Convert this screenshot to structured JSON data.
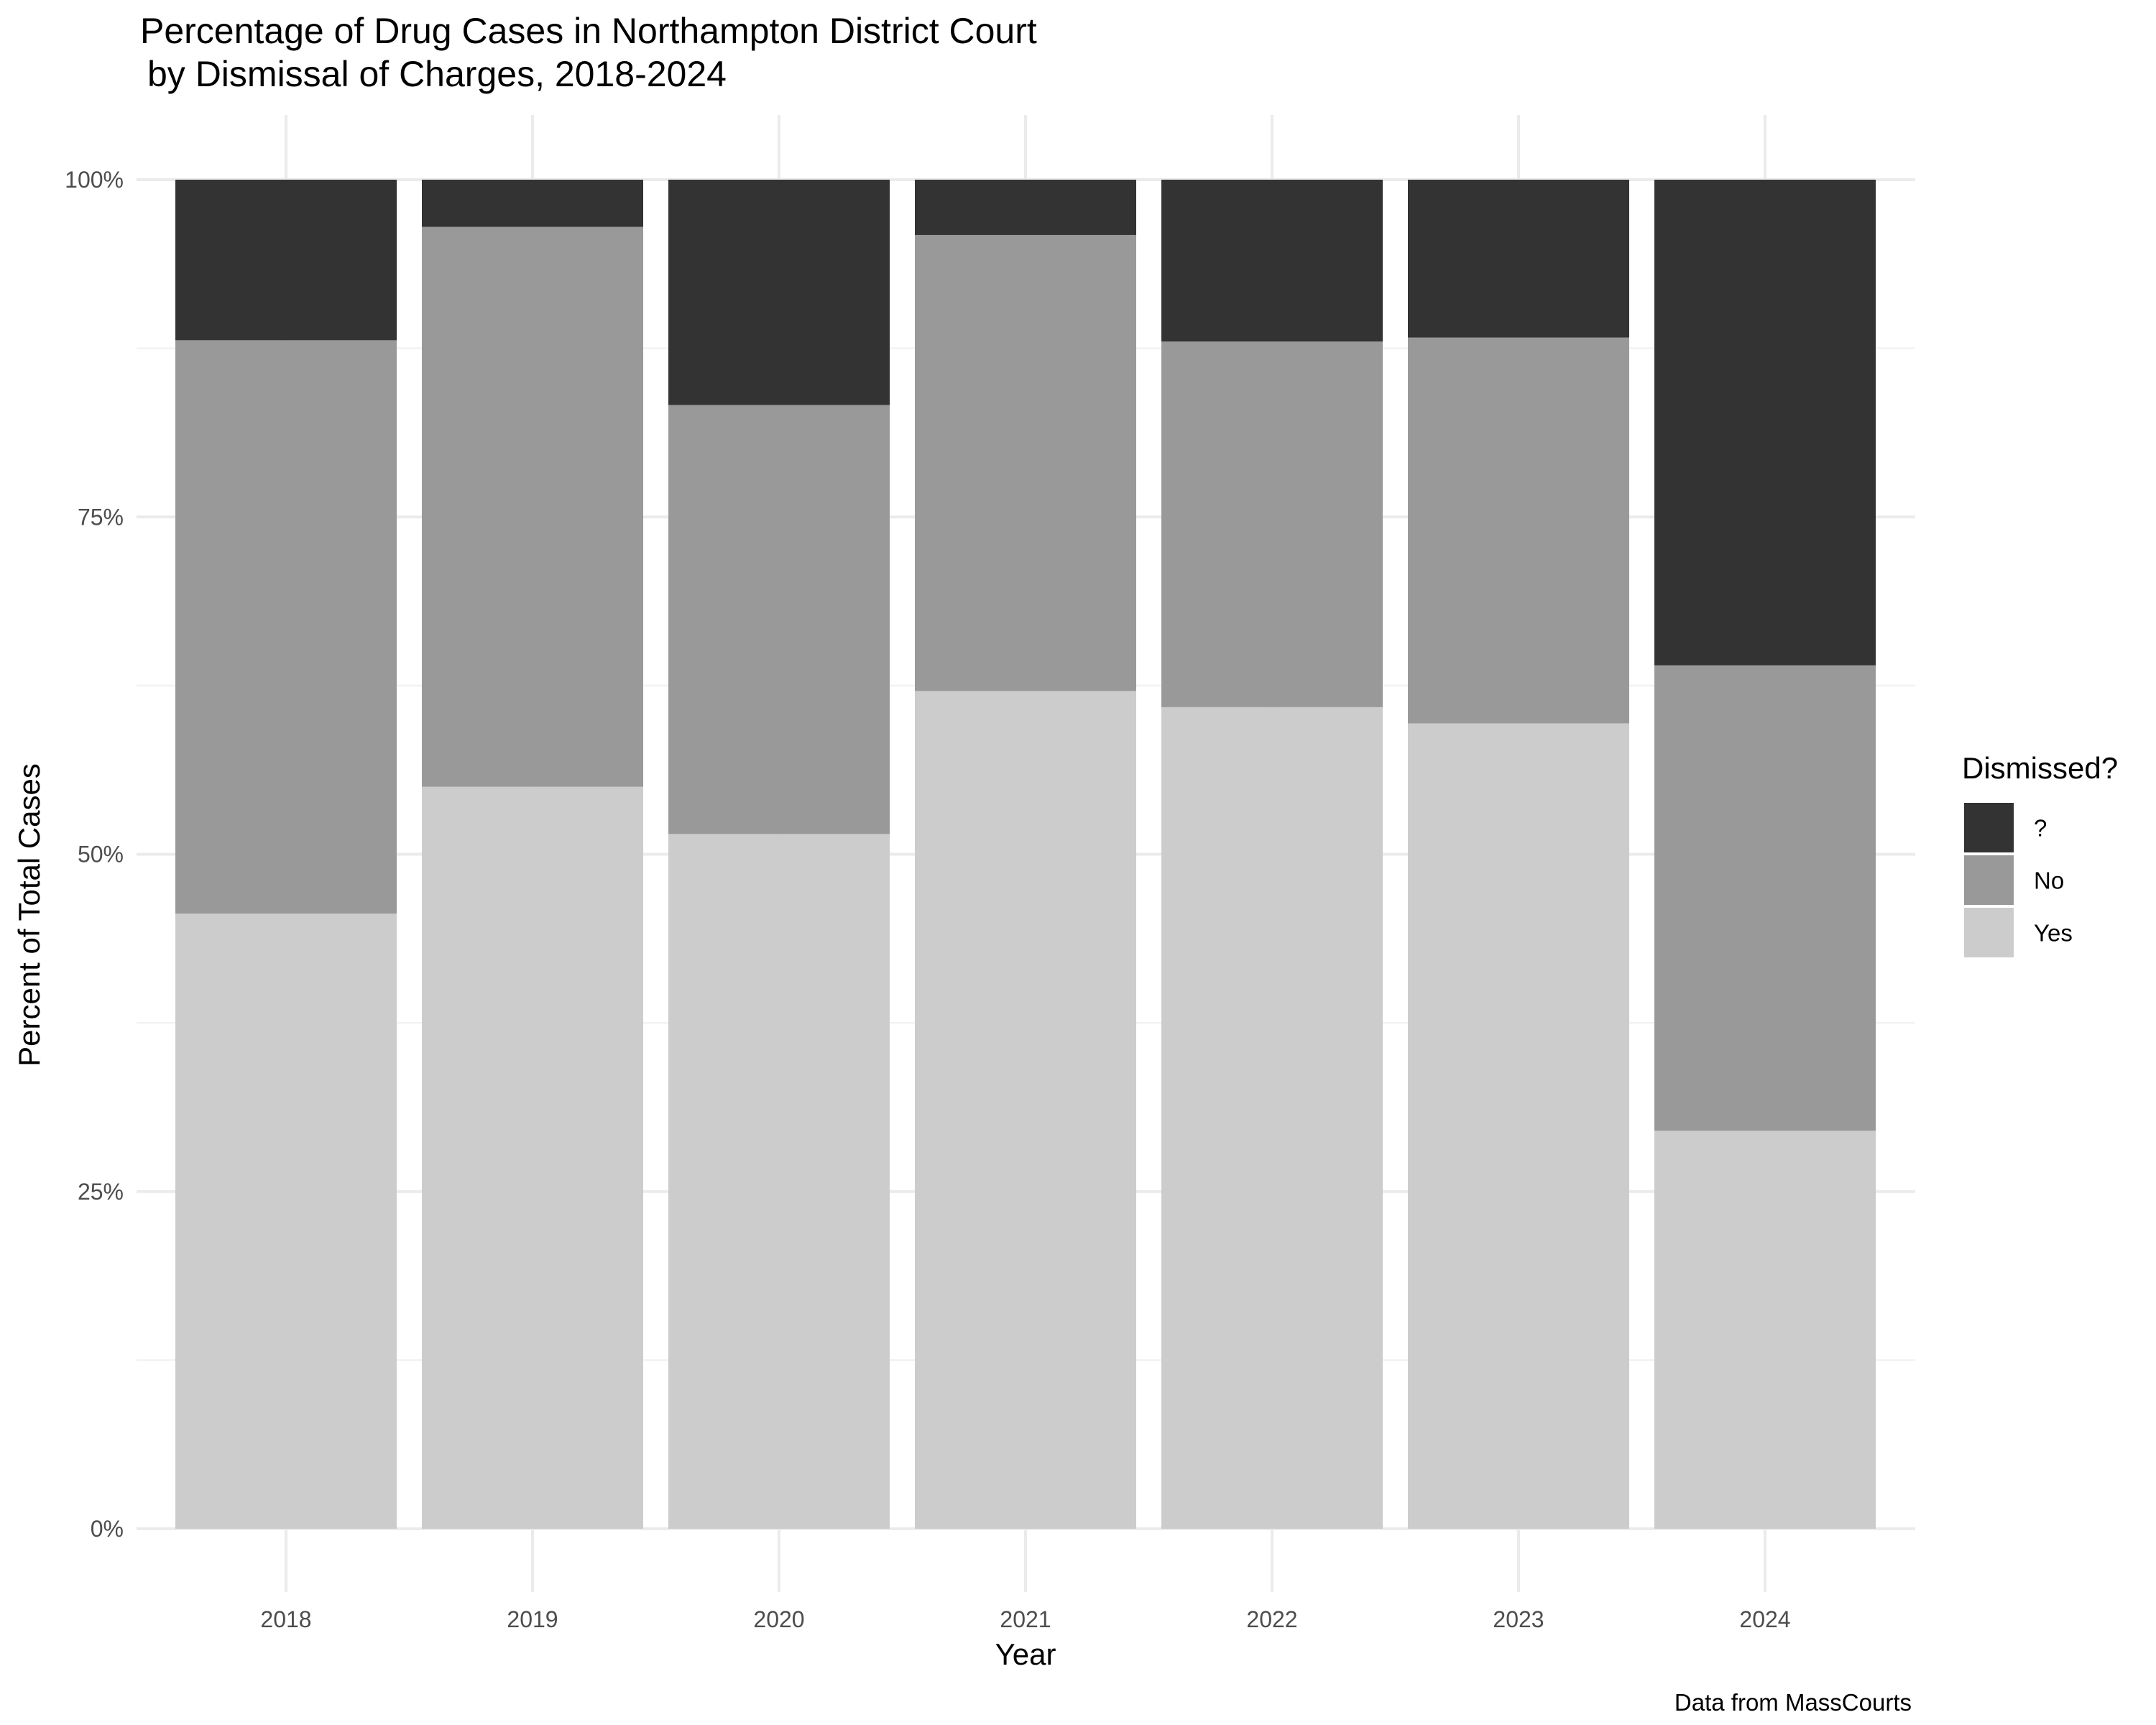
{
  "chart_data": {
    "type": "bar",
    "stacked": "percent",
    "title": "Percentage of Drug Cases in Northampton District Court",
    "subtitle": "by Dismissal of Charges, 2018-2024",
    "xlabel": "Year",
    "ylabel": "Percent of Total Cases",
    "caption": "Data from MassCourts",
    "categories": [
      "2018",
      "2019",
      "2020",
      "2021",
      "2022",
      "2023",
      "2024"
    ],
    "y_ticks": [
      "0%",
      "25%",
      "50%",
      "75%",
      "100%"
    ],
    "ylim": [
      0,
      100
    ],
    "grid": true,
    "legend": {
      "title": "Dismissed?",
      "position": "right"
    },
    "series": [
      {
        "name": "Yes",
        "color": "#cccccc",
        "values": [
          45.6,
          55.0,
          51.5,
          62.1,
          60.9,
          59.7,
          29.5
        ]
      },
      {
        "name": "No",
        "color": "#999999",
        "values": [
          42.5,
          41.5,
          31.8,
          33.8,
          27.1,
          28.6,
          34.5
        ]
      },
      {
        "name": "?",
        "color": "#333333",
        "values": [
          11.9,
          3.5,
          16.7,
          4.1,
          12.0,
          11.7,
          36.0
        ]
      }
    ],
    "legend_order": [
      "?",
      "No",
      "Yes"
    ]
  }
}
